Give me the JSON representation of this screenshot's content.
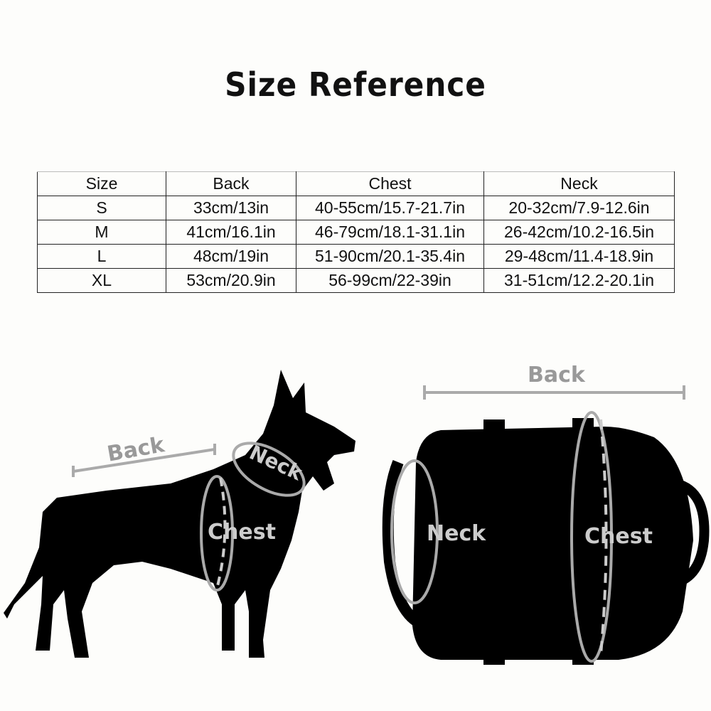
{
  "title": "Size Reference",
  "table": {
    "headers": [
      "Size",
      "Back",
      "Chest",
      "Neck"
    ],
    "rows": [
      [
        "S",
        "33cm/13in",
        "40-55cm/15.7-21.7in",
        "20-32cm/7.9-12.6in"
      ],
      [
        "M",
        "41cm/16.1in",
        "46-79cm/18.1-31.1in",
        "26-42cm/10.2-16.5in"
      ],
      [
        "L",
        "48cm/19in",
        "51-90cm/20.1-35.4in",
        "29-48cm/11.4-18.9in"
      ],
      [
        "XL",
        "53cm/20.9in",
        "56-99cm/22-39in",
        "31-51cm/12.2-20.1in"
      ]
    ]
  },
  "dog_diagram": {
    "back": "Back",
    "neck": "Neck",
    "chest": "Chest"
  },
  "harness_diagram": {
    "back": "Back",
    "neck": "Neck",
    "chest": "Chest"
  }
}
